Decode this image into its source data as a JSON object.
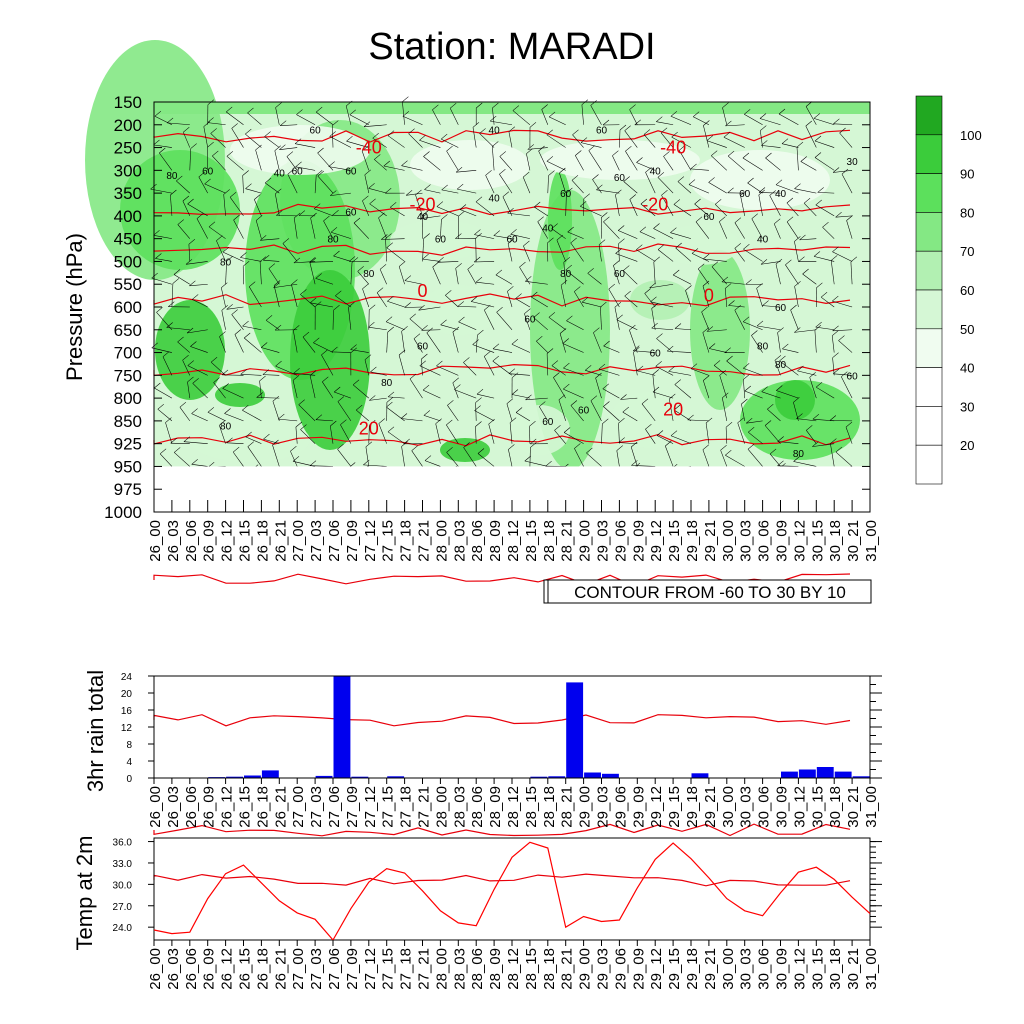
{
  "title": "Station: MARADI",
  "colors": {
    "background": "#ffffff",
    "isotherm": "#e8000b",
    "rain_bar": "#0000ee",
    "temp_line": "#ff0000",
    "rh_levels": [
      "#ffffff",
      "#f0fcf0",
      "#d5f7d5",
      "#b2f0b2",
      "#84e884",
      "#5ce05c",
      "#3bcc3b",
      "#21a821"
    ]
  },
  "time_labels": [
    "26_00",
    "26_03",
    "26_06",
    "26_09",
    "26_12",
    "26_15",
    "26_18",
    "26_21",
    "27_00",
    "27_03",
    "27_06",
    "27_09",
    "27_12",
    "27_15",
    "27_18",
    "27_21",
    "28_00",
    "28_03",
    "28_06",
    "28_09",
    "28_12",
    "28_15",
    "28_18",
    "28_21",
    "29_00",
    "29_03",
    "29_06",
    "29_09",
    "29_12",
    "29_15",
    "29_18",
    "29_21",
    "30_00",
    "30_03",
    "30_06",
    "30_09",
    "30_12",
    "30_15",
    "30_18",
    "30_21",
    "31_00"
  ],
  "chart_data": [
    {
      "type": "heatmap",
      "name": "cross-section",
      "ylabel": "Pressure (hPa)",
      "y_ticks": [
        150,
        200,
        250,
        300,
        350,
        400,
        450,
        500,
        550,
        600,
        650,
        700,
        750,
        800,
        850,
        925,
        950,
        975,
        1000
      ],
      "footer": "CONTOUR FROM -60 TO 30 BY 10",
      "colorbar": {
        "levels": [
          100,
          90,
          80,
          70,
          60,
          50,
          40,
          30,
          20
        ]
      },
      "temperature_labels": [
        {
          "text": "-40",
          "time": "27_12",
          "p": 250
        },
        {
          "text": "-40",
          "time": "29_15",
          "p": 250
        },
        {
          "text": "-20",
          "time": "27_21",
          "p": 375
        },
        {
          "text": "-20",
          "time": "29_12",
          "p": 375
        },
        {
          "text": "0",
          "time": "27_21",
          "p": 565
        },
        {
          "text": "0",
          "time": "29_21",
          "p": 575
        },
        {
          "text": "20",
          "time": "27_12",
          "p": 875
        },
        {
          "text": "20",
          "time": "29_15",
          "p": 825
        }
      ],
      "rh_labels": [
        {
          "text": "60",
          "time": "27_03",
          "p": 210
        },
        {
          "text": "40",
          "time": "28_09",
          "p": 210
        },
        {
          "text": "60",
          "time": "29_03",
          "p": 210
        },
        {
          "text": "80",
          "time": "26_03",
          "p": 310
        },
        {
          "text": "60",
          "time": "26_09",
          "p": 300
        },
        {
          "text": "40",
          "time": "26_21",
          "p": 305
        },
        {
          "text": "60",
          "time": "27_00",
          "p": 300
        },
        {
          "text": "60",
          "time": "27_09",
          "p": 300
        },
        {
          "text": "60",
          "time": "29_06",
          "p": 315
        },
        {
          "text": "40",
          "time": "29_12",
          "p": 300
        },
        {
          "text": "30",
          "time": "30_21",
          "p": 280
        },
        {
          "text": "60",
          "time": "28_21",
          "p": 350
        },
        {
          "text": "40",
          "time": "28_09",
          "p": 360
        },
        {
          "text": "60",
          "time": "30_03",
          "p": 350
        },
        {
          "text": "40",
          "time": "30_09",
          "p": 350
        },
        {
          "text": "60",
          "time": "27_09",
          "p": 390
        },
        {
          "text": "40",
          "time": "27_21",
          "p": 400
        },
        {
          "text": "60",
          "time": "29_21",
          "p": 400
        },
        {
          "text": "40",
          "time": "28_18",
          "p": 425
        },
        {
          "text": "80",
          "time": "27_06",
          "p": 450
        },
        {
          "text": "60",
          "time": "28_00",
          "p": 450
        },
        {
          "text": "60",
          "time": "28_12",
          "p": 450
        },
        {
          "text": "40",
          "time": "30_06",
          "p": 450
        },
        {
          "text": "80",
          "time": "26_12",
          "p": 500
        },
        {
          "text": "80",
          "time": "27_12",
          "p": 525
        },
        {
          "text": "80",
          "time": "28_21",
          "p": 525
        },
        {
          "text": "60",
          "time": "29_06",
          "p": 525
        },
        {
          "text": "60",
          "time": "30_09",
          "p": 600
        },
        {
          "text": "60",
          "time": "28_15",
          "p": 625
        },
        {
          "text": "60",
          "time": "27_21",
          "p": 685
        },
        {
          "text": "80",
          "time": "30_06",
          "p": 685
        },
        {
          "text": "60",
          "time": "29_12",
          "p": 700
        },
        {
          "text": "80",
          "time": "30_09",
          "p": 725
        },
        {
          "text": "60",
          "time": "30_21",
          "p": 750
        },
        {
          "text": "80",
          "time": "27_15",
          "p": 765
        },
        {
          "text": "60",
          "time": "29_00",
          "p": 825
        },
        {
          "text": "60",
          "time": "28_18",
          "p": 850
        },
        {
          "text": "80",
          "time": "26_12",
          "p": 865
        },
        {
          "text": "80",
          "time": "30_12",
          "p": 935
        }
      ]
    },
    {
      "type": "bar",
      "name": "rain",
      "ylabel": "3hr rain total",
      "ylim": [
        0,
        24
      ],
      "y_ticks": [
        0,
        4,
        8,
        12,
        16,
        20,
        24
      ],
      "values": [
        0,
        0,
        0,
        0.2,
        0.3,
        0.6,
        1.8,
        0,
        0,
        0.5,
        24.5,
        0.3,
        0,
        0.4,
        0,
        0,
        0,
        0,
        0,
        0,
        0,
        0.3,
        0.4,
        22.5,
        1.3,
        1.0,
        0,
        0,
        0,
        0,
        1.1,
        0,
        0,
        0,
        0,
        1.5,
        2.0,
        2.6,
        1.5,
        0.4
      ]
    },
    {
      "type": "line",
      "name": "temp",
      "ylabel": "Temp at 2m",
      "ylim": [
        22.2,
        36.5
      ],
      "y_ticks": [
        24,
        27,
        30,
        33,
        36
      ],
      "y_tick_labels": [
        "24.0",
        "27.0",
        "30.0",
        "33.0",
        "36.0"
      ],
      "values": [
        23.6,
        23.1,
        23.3,
        28.0,
        31.5,
        32.7,
        30.2,
        27.7,
        26.0,
        25.1,
        22.2,
        26.6,
        30.3,
        32.2,
        31.6,
        29.1,
        26.3,
        24.6,
        24.2,
        29.3,
        33.8,
        35.9,
        35.1,
        24.0,
        25.5,
        24.8,
        25.0,
        29.5,
        33.5,
        35.8,
        33.6,
        30.9,
        28.0,
        26.3,
        25.6,
        28.8,
        31.7,
        32.4,
        30.7,
        28.2,
        25.9
      ]
    }
  ]
}
